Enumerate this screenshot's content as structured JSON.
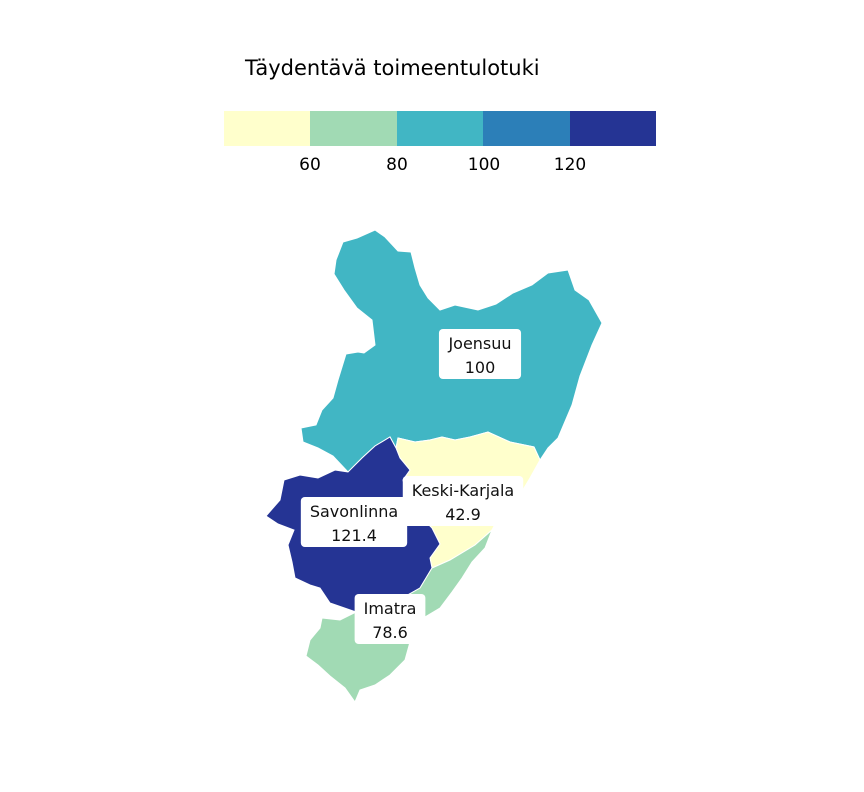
{
  "legend": {
    "title": "Täydentävä toimeentulotuki",
    "colors": [
      "#ffffcc",
      "#a1dab4",
      "#41b6c4",
      "#2c7fb8",
      "#253494"
    ],
    "tick_labels": [
      "60",
      "80",
      "100",
      "120"
    ]
  },
  "regions": [
    {
      "name": "Joensuu",
      "value": "100",
      "color": "#41b6c4"
    },
    {
      "name": "Keski-Karjala",
      "value": "42.9",
      "color": "#ffffcc"
    },
    {
      "name": "Savonlinna",
      "value": "121.4",
      "color": "#253494"
    },
    {
      "name": "Imatra",
      "value": "78.6",
      "color": "#a1dab4"
    }
  ]
}
